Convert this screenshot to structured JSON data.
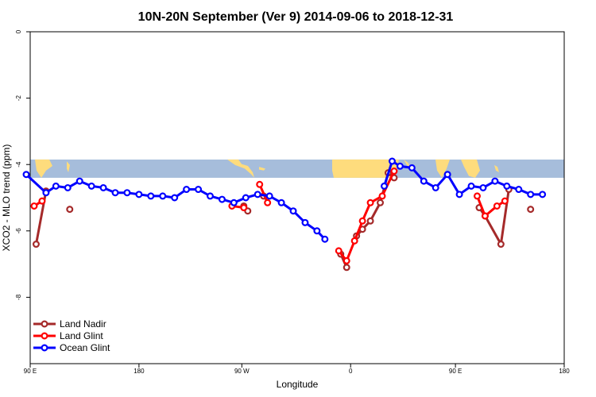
{
  "chart_data": {
    "type": "line",
    "title": "10N-20N September (Ver 9)   2014-09-06 to 2018-12-31",
    "xlabel": "Longitude",
    "ylabel": "XCO2 - MLO trend (ppm)",
    "xlim": [
      -90,
      180
    ],
    "ylim": [
      -10,
      0
    ],
    "x_ticks": [
      {
        "label": "90 E",
        "value": -90
      },
      {
        "label": "180",
        "value": -35
      },
      {
        "label": "90 W",
        "value": 17
      },
      {
        "label": "0",
        "value": 72
      },
      {
        "label": "90 E",
        "value": 125
      },
      {
        "label": "180",
        "value": 180
      }
    ],
    "y_ticks": [
      {
        "label": "0",
        "value": 0
      },
      {
        "label": "-2",
        "value": -2
      },
      {
        "label": "-4",
        "value": -4
      },
      {
        "label": "-6",
        "value": -6
      },
      {
        "label": "-8",
        "value": -8
      }
    ],
    "grid": false,
    "legend_position": "bottom-left",
    "map_strip": {
      "y_top": -3.85,
      "y_bottom": -4.4,
      "ocean_color": "#A6BDDB",
      "land_color": "#FEDC7D"
    },
    "series": [
      {
        "name": "Land Nadir",
        "color": "#A52A2A",
        "segments": [
          [
            [
              -87,
              -6.4
            ],
            [
              -82,
              -4.8
            ]
          ],
          [
            [
              -70,
              -5.35
            ]
          ],
          [
            [
              18,
              -5.25
            ],
            [
              20,
              -5.4
            ]
          ],
          [
            [
              28,
              -4.95
            ]
          ],
          [
            [
              67,
              -6.7
            ],
            [
              70,
              -7.1
            ]
          ],
          [
            [
              75,
              -6.15
            ],
            [
              78,
              -5.95
            ],
            [
              82,
              -5.7
            ],
            [
              87,
              -5.15
            ],
            [
              91,
              -4.25
            ],
            [
              94,
              -4.4
            ]
          ],
          [
            [
              137,
              -5.3
            ],
            [
              140,
              -5.55
            ],
            [
              148,
              -6.4
            ],
            [
              152,
              -4.75
            ]
          ],
          [
            [
              163,
              -5.35
            ]
          ]
        ]
      },
      {
        "name": "Land Glint",
        "color": "#FF0000",
        "segments": [
          [
            [
              -88,
              -5.25
            ],
            [
              -84,
              -5.1
            ]
          ],
          [
            [
              12,
              -5.25
            ],
            [
              18,
              -5.3
            ]
          ],
          [
            [
              26,
              -4.6
            ],
            [
              30,
              -5.15
            ]
          ],
          [
            [
              66,
              -6.6
            ],
            [
              70,
              -6.9
            ],
            [
              74,
              -6.3
            ],
            [
              78,
              -5.7
            ],
            [
              82,
              -5.15
            ],
            [
              88,
              -4.95
            ],
            [
              94,
              -4.2
            ]
          ],
          [
            [
              136,
              -4.95
            ],
            [
              140,
              -5.55
            ],
            [
              146,
              -5.25
            ],
            [
              150,
              -5.1
            ]
          ]
        ]
      },
      {
        "name": "Ocean Glint",
        "color": "#0000FF",
        "segments": [
          [
            [
              -92,
              -4.3
            ],
            [
              -82,
              -4.85
            ],
            [
              -77,
              -4.65
            ],
            [
              -71,
              -4.7
            ],
            [
              -65,
              -4.5
            ],
            [
              -59,
              -4.65
            ],
            [
              -53,
              -4.7
            ],
            [
              -47,
              -4.85
            ],
            [
              -41,
              -4.85
            ],
            [
              -35,
              -4.9
            ],
            [
              -29,
              -4.95
            ],
            [
              -23,
              -4.95
            ],
            [
              -17,
              -5.0
            ],
            [
              -11,
              -4.75
            ],
            [
              -5,
              -4.75
            ],
            [
              1,
              -4.95
            ],
            [
              7,
              -5.05
            ],
            [
              13,
              -5.15
            ],
            [
              19,
              -5.0
            ],
            [
              25,
              -4.9
            ],
            [
              31,
              -4.95
            ],
            [
              37,
              -5.15
            ],
            [
              43,
              -5.4
            ],
            [
              49,
              -5.75
            ],
            [
              55,
              -6.0
            ],
            [
              59,
              -6.25
            ]
          ],
          [
            [
              89,
              -4.65
            ],
            [
              93,
              -3.9
            ],
            [
              97,
              -4.05
            ],
            [
              103,
              -4.1
            ],
            [
              109,
              -4.5
            ],
            [
              115,
              -4.7
            ],
            [
              121,
              -4.3
            ],
            [
              127,
              -4.9
            ],
            [
              133,
              -4.65
            ],
            [
              139,
              -4.7
            ],
            [
              145,
              -4.5
            ],
            [
              151,
              -4.65
            ],
            [
              157,
              -4.75
            ],
            [
              163,
              -4.9
            ],
            [
              169,
              -4.9
            ]
          ]
        ]
      }
    ]
  }
}
